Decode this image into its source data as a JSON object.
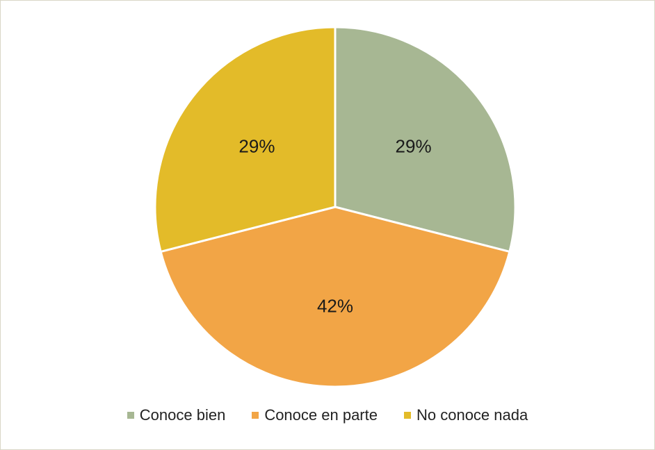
{
  "chart_data": {
    "type": "pie",
    "title": "",
    "categories": [
      "Conoce bien",
      "Conoce en parte",
      "No conoce nada"
    ],
    "values": [
      29,
      42,
      29
    ],
    "labels": [
      "29%",
      "42%",
      "29%"
    ],
    "colors": [
      "#a7b793",
      "#f2a546",
      "#e3bb29"
    ],
    "start_angle_deg": 0,
    "direction": "clockwise",
    "legend_position": "bottom"
  }
}
